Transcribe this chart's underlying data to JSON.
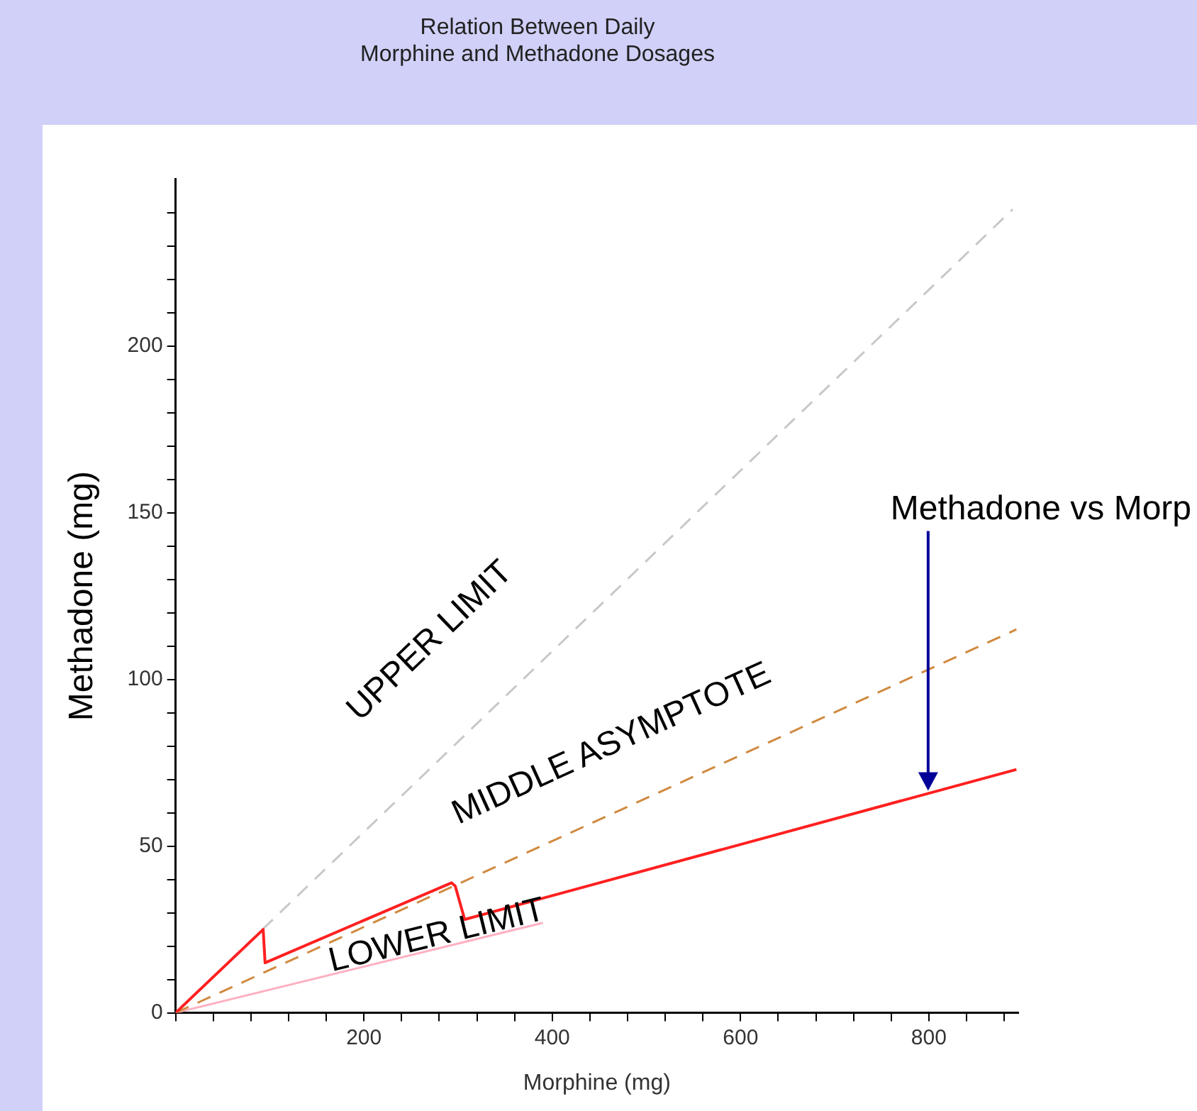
{
  "chart_data": {
    "type": "line",
    "title": "Relation Between Daily\nMorphine and Methadone Dosages",
    "xlabel": "Morphine (mg)",
    "ylabel": "Methadone (mg)",
    "xlim": [
      0,
      895
    ],
    "xticks": [
      {
        "value": 0,
        "label": null
      },
      {
        "value": 40,
        "label": null
      },
      {
        "value": 80,
        "label": null
      },
      {
        "value": 120,
        "label": null
      },
      {
        "value": 160,
        "label": null
      },
      200,
      {
        "value": 240,
        "label": null
      },
      {
        "value": 280,
        "label": null
      },
      {
        "value": 320,
        "label": null
      },
      {
        "value": 360,
        "label": null
      },
      400,
      {
        "value": 440,
        "label": null
      },
      {
        "value": 480,
        "label": null
      },
      {
        "value": 520,
        "label": null
      },
      {
        "value": 560,
        "label": null
      },
      600,
      {
        "value": 640,
        "label": null
      },
      {
        "value": 680,
        "label": null
      },
      {
        "value": 720,
        "label": null
      },
      {
        "value": 760,
        "label": null
      },
      800,
      {
        "value": 840,
        "label": null
      },
      {
        "value": 880,
        "label": null
      }
    ],
    "ylim": [
      0,
      250
    ],
    "yticks": [
      0,
      {
        "value": 10,
        "label": null
      },
      {
        "value": 20,
        "label": null
      },
      {
        "value": 30,
        "label": null
      },
      {
        "value": 40,
        "label": null
      },
      50,
      {
        "value": 60,
        "label": null
      },
      {
        "value": 70,
        "label": null
      },
      {
        "value": 80,
        "label": null
      },
      {
        "value": 90,
        "label": null
      },
      100,
      {
        "value": 110,
        "label": null
      },
      {
        "value": 120,
        "label": null
      },
      {
        "value": 130,
        "label": null
      },
      {
        "value": 140,
        "label": null
      },
      150,
      {
        "value": 160,
        "label": null
      },
      {
        "value": 170,
        "label": null
      },
      {
        "value": 180,
        "label": null
      },
      {
        "value": 190,
        "label": null
      },
      200,
      {
        "value": 210,
        "label": null
      },
      {
        "value": 220,
        "label": null
      },
      {
        "value": 230,
        "label": null
      },
      {
        "value": 240,
        "label": null
      }
    ],
    "grid": false,
    "legend": false,
    "marker": "none",
    "series": [
      {
        "name": "UPPER LIMIT",
        "color": "#c8c8c8",
        "line_style": "dashed",
        "x": [
          0,
          889
        ],
        "values": [
          0,
          241
        ]
      },
      {
        "name": "MIDDLE ASYMPTOTE",
        "color": "#d08a40",
        "line_style": "dashed",
        "x": [
          0,
          893
        ],
        "values": [
          0,
          115
        ]
      },
      {
        "name": "Methadone vs Morp",
        "color": "#ff2020",
        "line_style": "solid",
        "x": [
          0,
          93,
          95,
          293,
          297,
          307,
          893
        ],
        "values": [
          0,
          25,
          15,
          39,
          38,
          28,
          73
        ]
      },
      {
        "name": "LOWER LIMIT",
        "color": "#ffb0c0",
        "line_style": "solid",
        "x": [
          0,
          390
        ],
        "values": [
          0,
          27
        ]
      }
    ]
  }
}
